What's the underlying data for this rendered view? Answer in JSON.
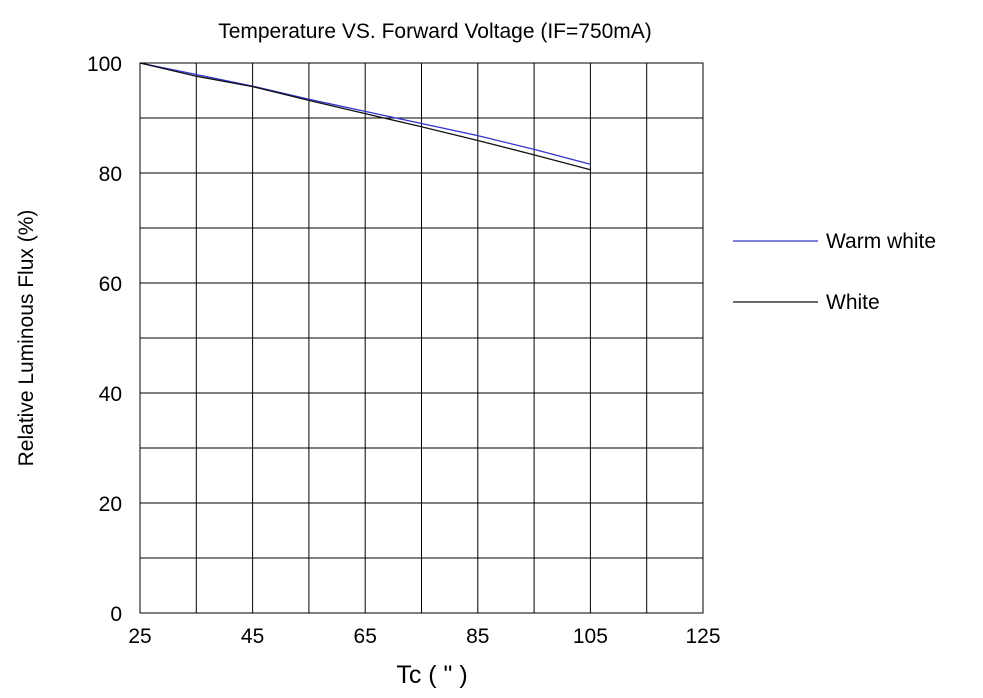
{
  "chart_data": {
    "type": "line",
    "title": "Temperature VS. Forward Voltage  (IF=750mA)",
    "xlabel": "Tc  ( \" )",
    "ylabel": "Relative Luminous Flux  (%)",
    "xlim": [
      25,
      125
    ],
    "ylim": [
      0,
      100
    ],
    "xticks": [
      25,
      45,
      65,
      85,
      105,
      125
    ],
    "yticks": [
      0,
      20,
      40,
      60,
      80,
      100
    ],
    "x_gridlines": [
      25,
      35,
      45,
      55,
      65,
      75,
      85,
      95,
      105,
      115,
      125
    ],
    "y_gridlines": [
      0,
      10,
      20,
      30,
      40,
      50,
      60,
      70,
      80,
      90,
      100
    ],
    "grid": true,
    "legend_position": "right",
    "series": [
      {
        "name": "Warm white",
        "color": "#3333cc",
        "x": [
          25,
          35,
          45,
          55,
          65,
          75,
          85,
          95,
          105
        ],
        "y": [
          100,
          97.9,
          95.8,
          93.4,
          91.2,
          89.0,
          86.8,
          84.3,
          81.6
        ]
      },
      {
        "name": "White",
        "color": "#111111",
        "x": [
          25,
          35,
          45,
          55,
          65,
          75,
          85,
          95,
          105
        ],
        "y": [
          100,
          97.6,
          95.7,
          93.2,
          90.8,
          88.4,
          85.9,
          83.3,
          80.6
        ]
      }
    ]
  }
}
